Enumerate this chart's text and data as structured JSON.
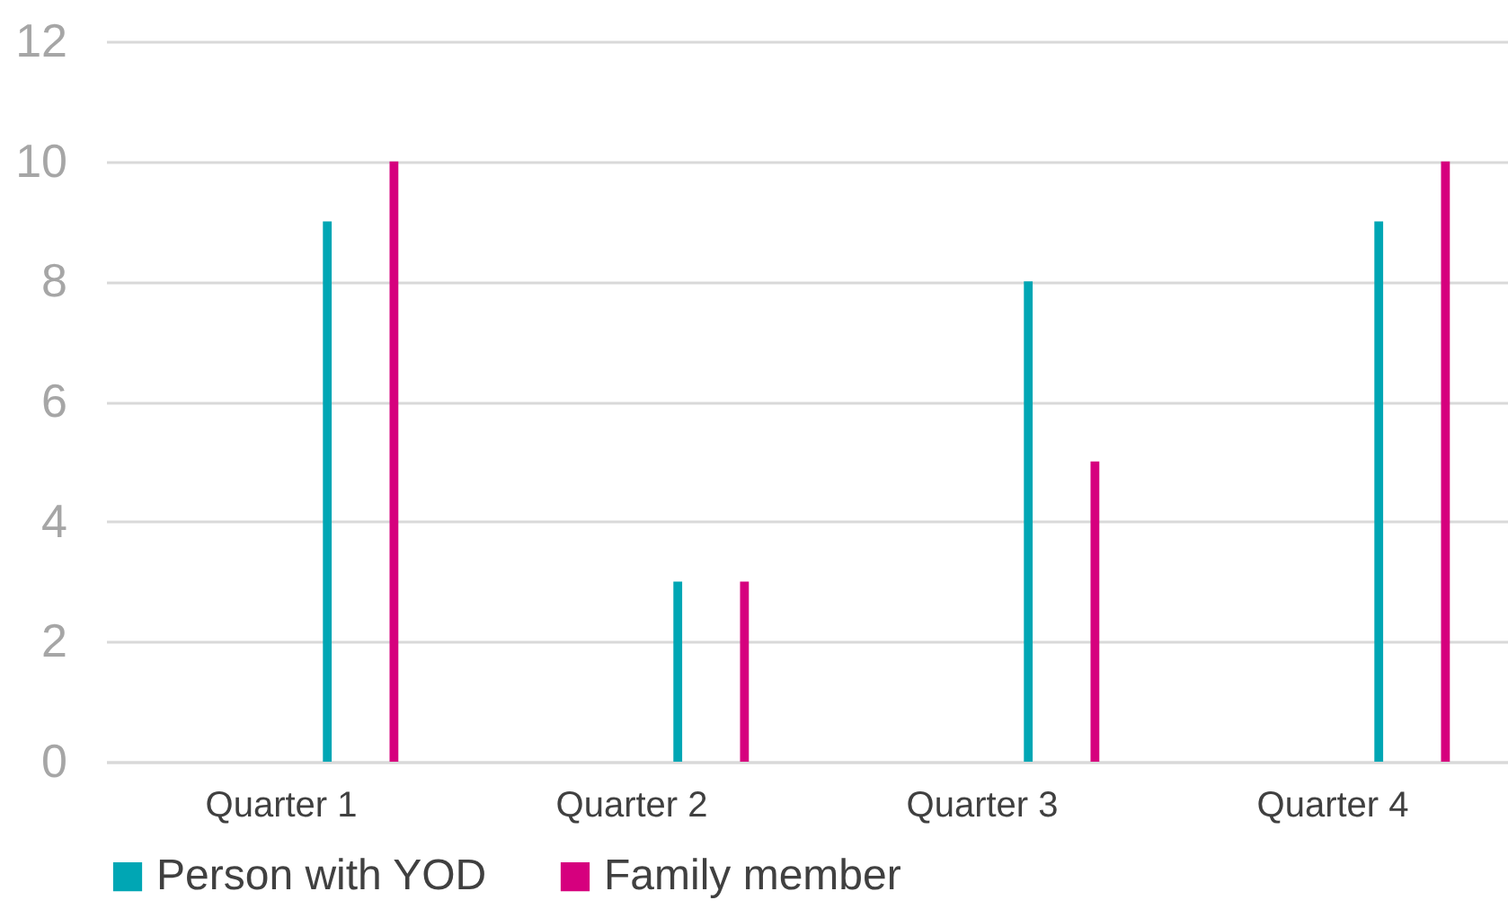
{
  "chart_data": {
    "type": "bar",
    "categories": [
      "Quarter 1",
      "Quarter 2",
      "Quarter 3",
      "Quarter 4"
    ],
    "series": [
      {
        "name": "Person with YOD",
        "color": "#00a6b4",
        "values": [
          9,
          3,
          8,
          9
        ]
      },
      {
        "name": "Family member",
        "color": "#d6007e",
        "values": [
          10,
          3,
          5,
          10
        ]
      }
    ],
    "ylim": [
      0,
      12
    ],
    "yticks": [
      0,
      2,
      4,
      6,
      8,
      10,
      12
    ],
    "grid": "y",
    "legend": "bottom"
  }
}
